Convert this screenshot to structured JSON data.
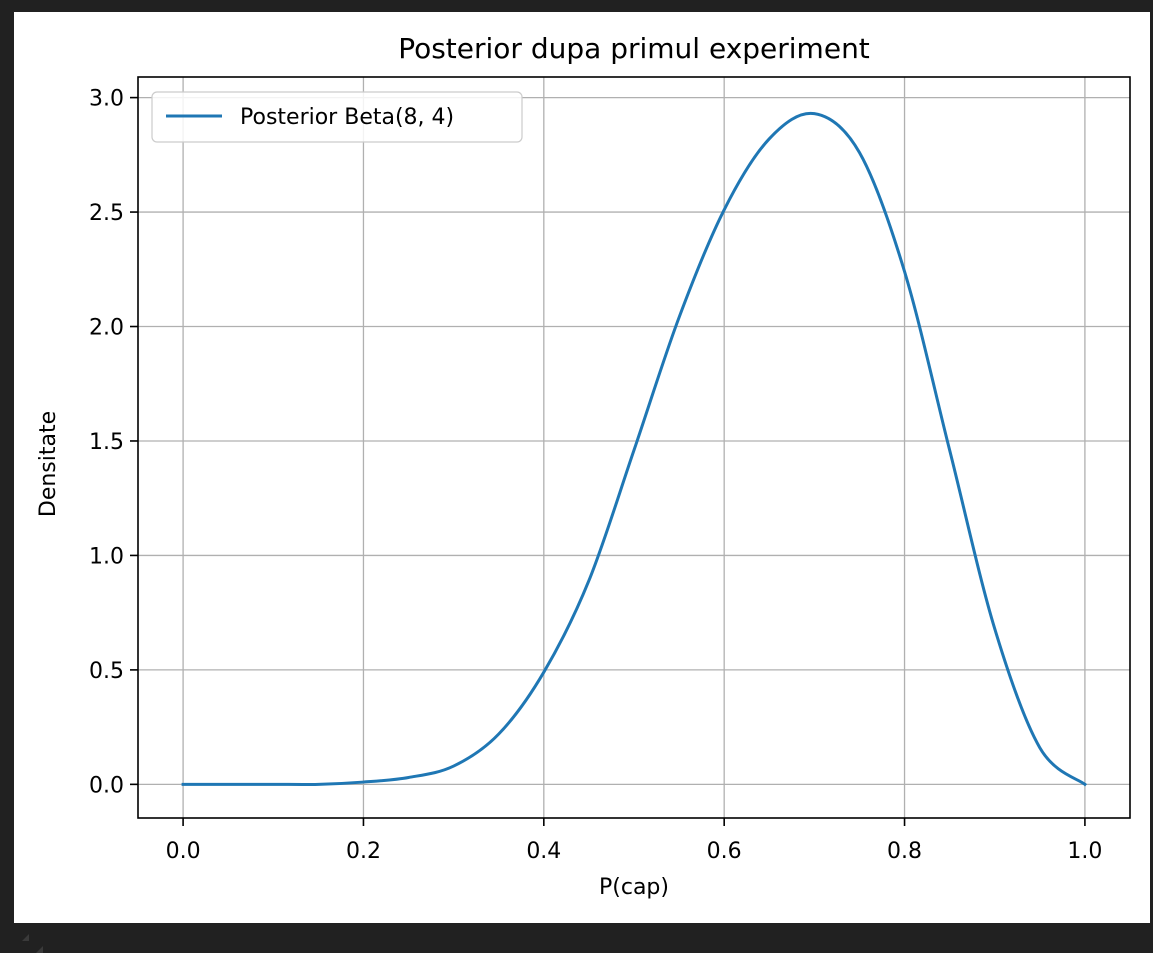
{
  "chart_data": {
    "type": "line",
    "title": "Posterior dupa primul experiment",
    "xlabel": "P(cap)",
    "ylabel": "Densitate",
    "xlim": [
      -0.05,
      1.05
    ],
    "ylim": [
      -0.147,
      3.09
    ],
    "xticks": [
      "0.0",
      "0.2",
      "0.4",
      "0.6",
      "0.8",
      "1.0"
    ],
    "yticks": [
      "0.0",
      "0.5",
      "1.0",
      "1.5",
      "2.0",
      "2.5",
      "3.0"
    ],
    "grid": true,
    "legend_position": "top-left",
    "series": [
      {
        "name": "Posterior Beta(8, 4)",
        "color": "#1f77b4",
        "x": [
          0.0,
          0.05,
          0.1,
          0.15,
          0.2,
          0.25,
          0.3,
          0.35,
          0.4,
          0.45,
          0.5,
          0.55,
          0.6,
          0.65,
          0.7,
          0.75,
          0.8,
          0.85,
          0.9,
          0.95,
          1.0
        ],
        "y": [
          0.0,
          0.0,
          0.0,
          0.0,
          0.01,
          0.03,
          0.08,
          0.22,
          0.49,
          0.89,
          1.46,
          2.04,
          2.51,
          2.82,
          2.93,
          2.76,
          2.24,
          1.46,
          0.68,
          0.16,
          0.0
        ]
      }
    ]
  }
}
